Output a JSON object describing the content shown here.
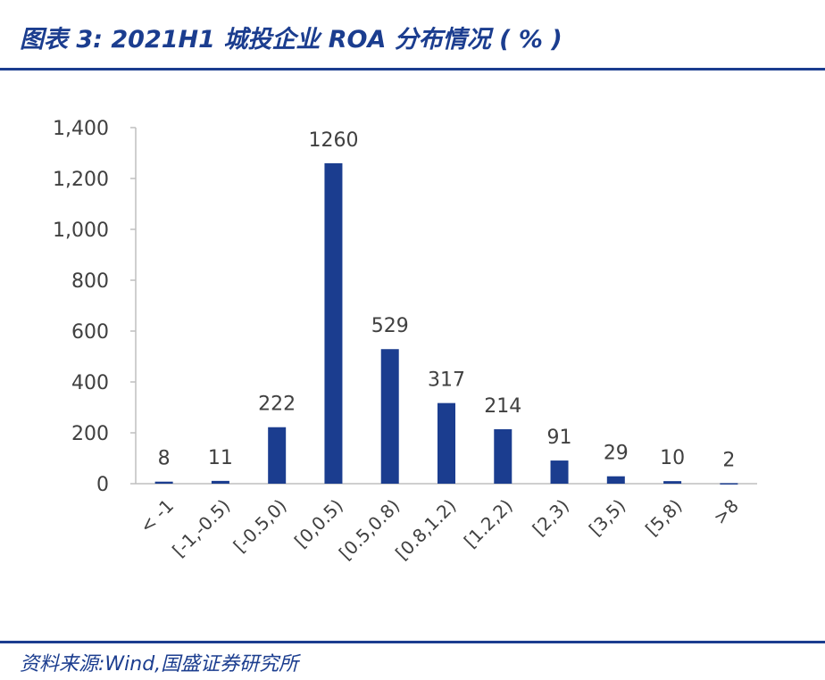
{
  "header": {
    "title": "图表 3:  2021H1 城投企业 ROA 分布情况 ( % )"
  },
  "footer": {
    "source": "资料来源:Wind,国盛证券研究所"
  },
  "colors": {
    "bar": "#1b3d8f",
    "axis": "#bfbfbf",
    "text": "#404040",
    "title": "#1b3d8f"
  },
  "chart_data": {
    "type": "bar",
    "title": "2021H1 城投企业 ROA 分布情况 ( % )",
    "categories": [
      "< -1",
      "[-1,-0.5)",
      "[-0.5,0)",
      "[0,0.5)",
      "[0.5,0.8)",
      "[0.8,1.2)",
      "[1.2,2)",
      "[2,3)",
      "[3,5)",
      "[5,8)",
      ">8"
    ],
    "values": [
      8,
      11,
      222,
      1260,
      529,
      317,
      214,
      91,
      29,
      10,
      2
    ],
    "data_labels": [
      "8",
      "11",
      "222",
      "1260",
      "529",
      "317",
      "214",
      "91",
      "29",
      "10",
      "2"
    ],
    "ylim": [
      0,
      1400
    ],
    "yticks": [
      0,
      200,
      400,
      600,
      800,
      1000,
      1200,
      1400
    ],
    "ytick_labels": [
      "0",
      "200",
      "400",
      "600",
      "800",
      "1,000",
      "1,200",
      "1,400"
    ],
    "grid": false,
    "legend": "none"
  }
}
